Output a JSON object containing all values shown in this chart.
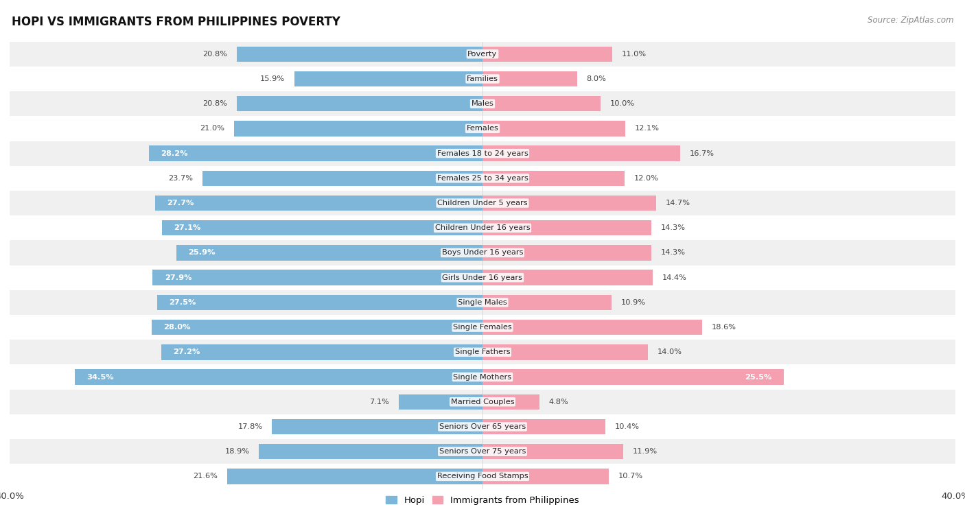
{
  "title": "HOPI VS IMMIGRANTS FROM PHILIPPINES POVERTY",
  "source": "Source: ZipAtlas.com",
  "categories": [
    "Poverty",
    "Families",
    "Males",
    "Females",
    "Females 18 to 24 years",
    "Females 25 to 34 years",
    "Children Under 5 years",
    "Children Under 16 years",
    "Boys Under 16 years",
    "Girls Under 16 years",
    "Single Males",
    "Single Females",
    "Single Fathers",
    "Single Mothers",
    "Married Couples",
    "Seniors Over 65 years",
    "Seniors Over 75 years",
    "Receiving Food Stamps"
  ],
  "hopi_values": [
    20.8,
    15.9,
    20.8,
    21.0,
    28.2,
    23.7,
    27.7,
    27.1,
    25.9,
    27.9,
    27.5,
    28.0,
    27.2,
    34.5,
    7.1,
    17.8,
    18.9,
    21.6
  ],
  "phil_values": [
    11.0,
    8.0,
    10.0,
    12.1,
    16.7,
    12.0,
    14.7,
    14.3,
    14.3,
    14.4,
    10.9,
    18.6,
    14.0,
    25.5,
    4.8,
    10.4,
    11.9,
    10.7
  ],
  "hopi_color": "#7EB6D9",
  "phil_color": "#F4A0B0",
  "background_color": "#ffffff",
  "row_even_color": "#f0f0f0",
  "row_odd_color": "#ffffff",
  "axis_limit": 40.0,
  "legend_hopi": "Hopi",
  "legend_phil": "Immigrants from Philippines",
  "bar_height": 0.62,
  "label_threshold": 25.0
}
